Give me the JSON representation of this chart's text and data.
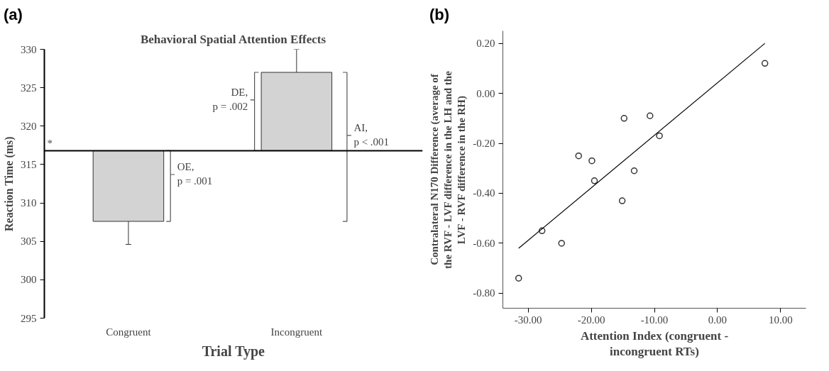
{
  "chart_data": [
    {
      "type": "bar",
      "title": "Behavioral Spatial Attention Effects",
      "xlabel": "Trial Type",
      "ylabel": "Reaction Time (ms)",
      "categories": [
        "Congruent",
        "Incongruent"
      ],
      "base": [
        316.8,
        316.8
      ],
      "values": [
        -9.2,
        10.2
      ],
      "errors": [
        3,
        3
      ],
      "color": "#d3d3d3",
      "ylim": [
        295,
        330
      ],
      "yticks": [
        295,
        300,
        305,
        310,
        315,
        320,
        325,
        330
      ],
      "grid": false,
      "ref_lines": [
        {
          "axis": "y",
          "value": 316.8,
          "label": "*",
          "color": "#000000"
        }
      ],
      "annotations": [
        "(a)",
        "OE, p = .001",
        "DE, p = .002",
        "AI, p < .001"
      ]
    },
    {
      "type": "scatter",
      "xlabel": "Attention Index (congruent - incongruent RTs)",
      "ylabel": "Contralateral N170 Difference (average of the RVF - LVF difference in the LH and the LVF - RVF difference in the RH)",
      "xlim": [
        -34,
        14
      ],
      "ylim": [
        -0.86,
        0.25
      ],
      "xticks": [
        {
          "value": -30,
          "label": "-30.00"
        },
        {
          "value": -20,
          "label": "-20.00"
        },
        {
          "value": -10,
          "label": "-10.00"
        },
        {
          "value": 0,
          "label": "0.00"
        },
        {
          "value": 10,
          "label": "10.00"
        }
      ],
      "yticks": [
        {
          "value": -0.8,
          "label": "-0.80"
        },
        {
          "value": -0.6,
          "label": "-0.60"
        },
        {
          "value": -0.4,
          "label": "-0.40"
        },
        {
          "value": -0.2,
          "label": "-0.20"
        },
        {
          "value": 0,
          "label": "0.00"
        },
        {
          "value": 0.2,
          "label": "0.20"
        }
      ],
      "grid": false,
      "series": [
        {
          "type": "scatter",
          "marker": "circle",
          "color": "#333333",
          "x": [
            -31.5,
            -27.8,
            -24.7,
            -22.0,
            -19.9,
            -19.5,
            -14.8,
            -15.1,
            -13.2,
            -10.7,
            -9.2,
            7.5
          ],
          "values": [
            -0.74,
            -0.55,
            -0.6,
            -0.25,
            -0.27,
            -0.35,
            -0.1,
            -0.43,
            -0.31,
            -0.09,
            -0.17,
            0.12
          ]
        },
        {
          "type": "line",
          "color": "#000000",
          "x": [
            -31.5,
            7.5
          ],
          "values": [
            -0.62,
            0.2
          ]
        }
      ],
      "annotations": [
        "(b)"
      ]
    }
  ]
}
